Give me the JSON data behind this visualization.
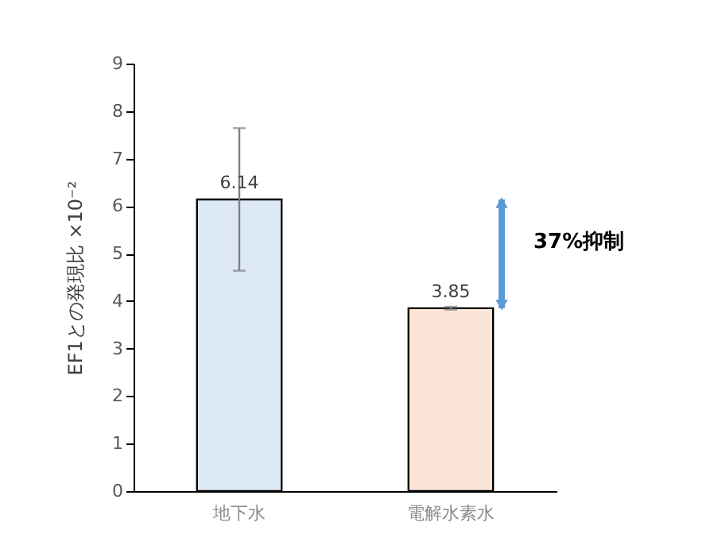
{
  "chart_data": {
    "type": "bar",
    "ylabel": "EF1との発現比 ×10⁻²",
    "categories": [
      "地下水",
      "電解水素水"
    ],
    "values": [
      6.14,
      3.85
    ],
    "colors": [
      "#dde8f5",
      "#fbe5d6"
    ],
    "errors": [
      1.5,
      0.03
    ],
    "data_labels": true,
    "ylim": [
      0,
      9
    ],
    "yticks": [
      0,
      1,
      2,
      3,
      4,
      5,
      6,
      7,
      8,
      9
    ],
    "grid": false,
    "annotations": [
      "37%抑制"
    ]
  }
}
